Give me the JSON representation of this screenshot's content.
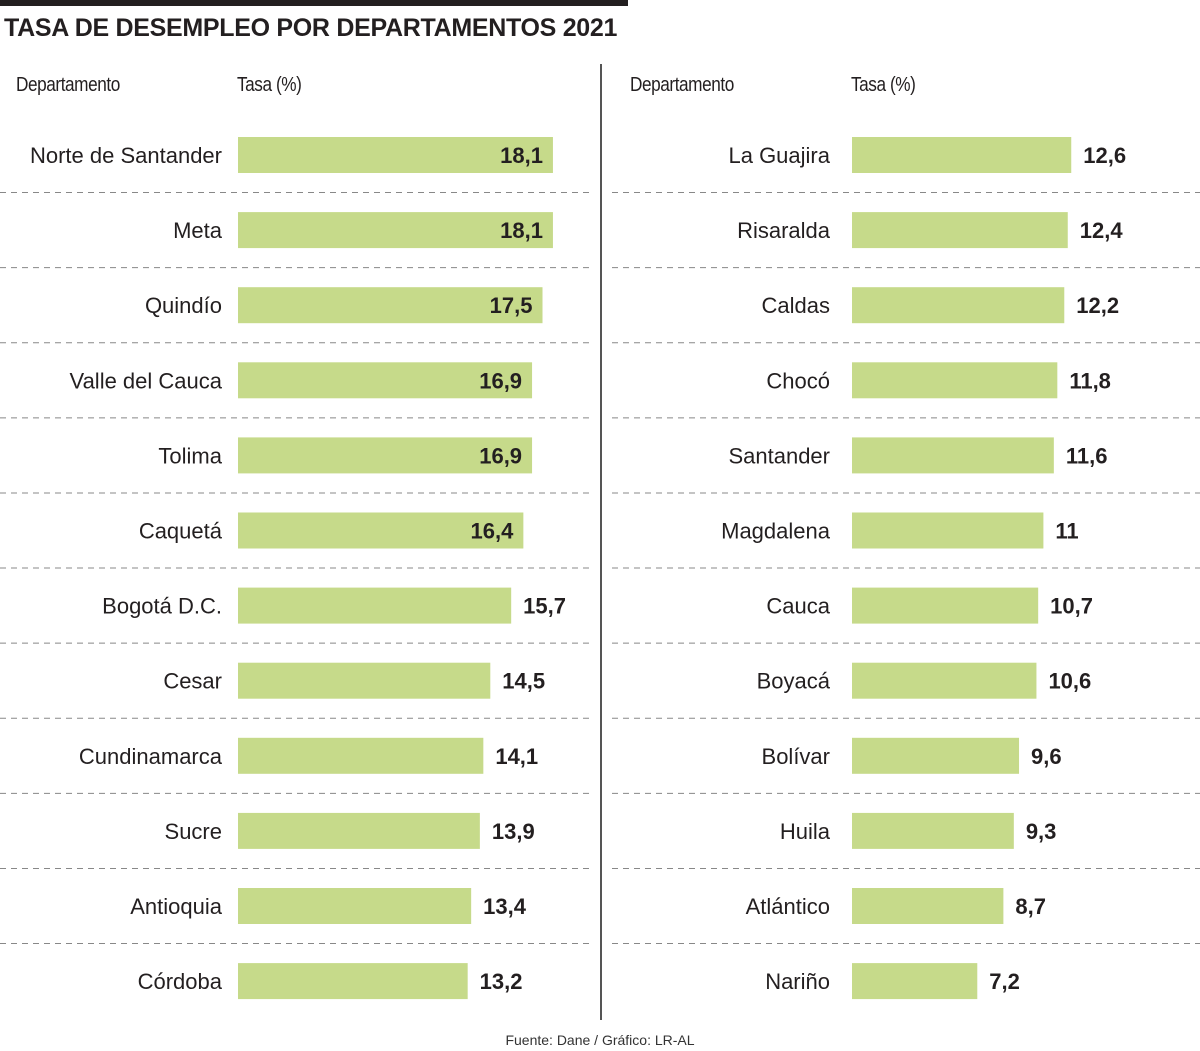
{
  "title": "TASA DE DESEMPLEO POR DEPARTAMENTOS 2021",
  "headers": {
    "department": "Departamento",
    "rate": "Tasa (%)"
  },
  "source": "Fuente: Dane / Gráfico: LR-AL",
  "colors": {
    "bar": "#c6da8a",
    "text": "#231f20",
    "separator": "#888888"
  },
  "chart_data": {
    "type": "bar",
    "orientation": "horizontal",
    "title": "TASA DE DESEMPLEO POR DEPARTAMENTOS 2021",
    "xlabel": "Tasa (%)",
    "ylabel": "Departamento",
    "xlim": [
      0,
      20
    ],
    "columns": [
      {
        "categories": [
          "Norte de Santander",
          "Meta",
          "Quindío",
          "Valle del Cauca",
          "Tolima",
          "Caquetá",
          "Bogotá D.C.",
          "Cesar",
          "Cundinamarca",
          "Sucre",
          "Antioquia",
          "Córdoba"
        ],
        "values": [
          18.1,
          18.1,
          17.5,
          16.9,
          16.9,
          16.4,
          15.7,
          14.5,
          14.1,
          13.9,
          13.4,
          13.2
        ],
        "labels": [
          "18,1",
          "18,1",
          "17,5",
          "16,9",
          "16,9",
          "16,4",
          "15,7",
          "14,5",
          "14,1",
          "13,9",
          "13,4",
          "13,2"
        ]
      },
      {
        "categories": [
          "La Guajira",
          "Risaralda",
          "Caldas",
          "Chocó",
          "Santander",
          "Magdalena",
          "Cauca",
          "Boyacá",
          "Bolívar",
          "Huila",
          "Atlántico",
          "Nariño"
        ],
        "values": [
          12.6,
          12.4,
          12.2,
          11.8,
          11.6,
          11,
          10.7,
          10.6,
          9.6,
          9.3,
          8.7,
          7.2
        ],
        "labels": [
          "12,6",
          "12,4",
          "12,2",
          "11,8",
          "11,6",
          "11",
          "10,7",
          "10,6",
          "9,6",
          "9,3",
          "8,7",
          "7,2"
        ]
      }
    ]
  }
}
